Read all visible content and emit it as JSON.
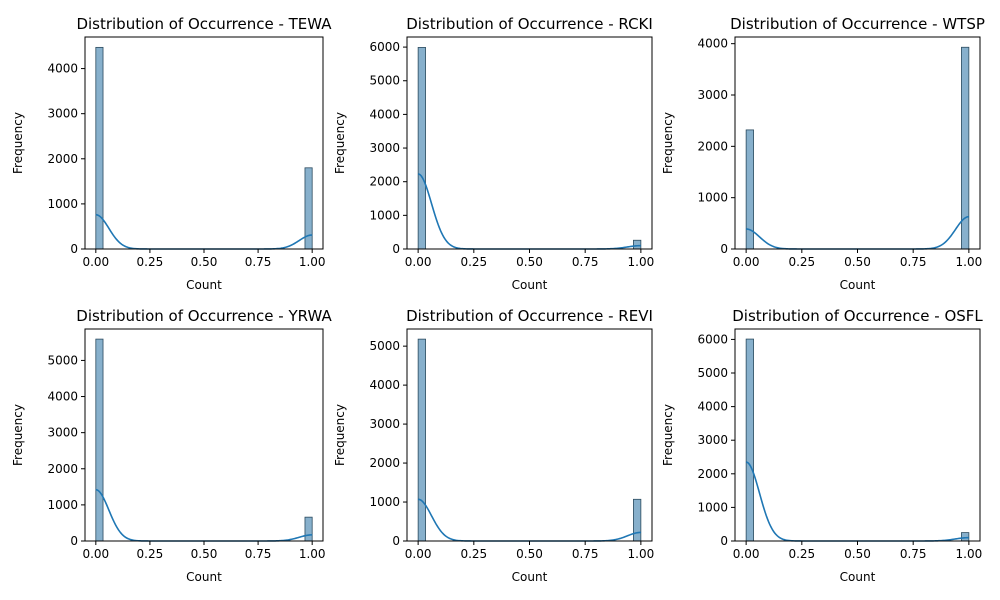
{
  "chart_data": [
    {
      "type": "bar",
      "title": "Distribution of Occurrence - TEWA",
      "xlabel": "Count",
      "ylabel": "Frequency",
      "categories": [
        0,
        1
      ],
      "values": [
        4470,
        1800
      ],
      "xlim": [
        -0.05,
        1.05
      ],
      "ylim": [
        0,
        4700
      ],
      "xticks": [
        "0.00",
        "0.25",
        "0.50",
        "0.75",
        "1.00"
      ],
      "yticks": [
        0,
        1000,
        2000,
        3000,
        4000
      ],
      "kde_peak_at_0": 760,
      "kde_peak_at_1": 310
    },
    {
      "type": "bar",
      "title": "Distribution of Occurrence - RCKI",
      "xlabel": "Count",
      "ylabel": "Frequency",
      "categories": [
        0,
        1
      ],
      "values": [
        5990,
        260
      ],
      "xlim": [
        -0.05,
        1.05
      ],
      "ylim": [
        0,
        6300
      ],
      "xticks": [
        "0.00",
        "0.25",
        "0.50",
        "0.75",
        "1.00"
      ],
      "yticks": [
        0,
        1000,
        2000,
        3000,
        4000,
        5000,
        6000
      ],
      "kde_peak_at_0": 2230,
      "kde_peak_at_1": 100
    },
    {
      "type": "bar",
      "title": "Distribution of Occurrence - WTSP",
      "xlabel": "Count",
      "ylabel": "Frequency",
      "categories": [
        0,
        1
      ],
      "values": [
        2320,
        3930
      ],
      "xlim": [
        -0.05,
        1.05
      ],
      "ylim": [
        0,
        4130
      ],
      "xticks": [
        "0.00",
        "0.25",
        "0.50",
        "0.75",
        "1.00"
      ],
      "yticks": [
        0,
        1000,
        2000,
        3000,
        4000
      ],
      "kde_peak_at_0": 390,
      "kde_peak_at_1": 630
    },
    {
      "type": "bar",
      "title": "Distribution of Occurrence - YRWA",
      "xlabel": "Count",
      "ylabel": "Frequency",
      "categories": [
        0,
        1
      ],
      "values": [
        5590,
        660
      ],
      "xlim": [
        -0.05,
        1.05
      ],
      "ylim": [
        0,
        5870
      ],
      "xticks": [
        "0.00",
        "0.25",
        "0.50",
        "0.75",
        "1.00"
      ],
      "yticks": [
        0,
        1000,
        2000,
        3000,
        4000,
        5000
      ],
      "kde_peak_at_0": 1420,
      "kde_peak_at_1": 170
    },
    {
      "type": "bar",
      "title": "Distribution of Occurrence - REVI",
      "xlabel": "Count",
      "ylabel": "Frequency",
      "categories": [
        0,
        1
      ],
      "values": [
        5180,
        1070
      ],
      "xlim": [
        -0.05,
        1.05
      ],
      "ylim": [
        0,
        5440
      ],
      "xticks": [
        "0.00",
        "0.25",
        "0.50",
        "0.75",
        "1.00"
      ],
      "yticks": [
        0,
        1000,
        2000,
        3000,
        4000,
        5000
      ],
      "kde_peak_at_0": 1070,
      "kde_peak_at_1": 220
    },
    {
      "type": "bar",
      "title": "Distribution of Occurrence - OSFL",
      "xlabel": "Count",
      "ylabel": "Frequency",
      "categories": [
        0,
        1
      ],
      "values": [
        6010,
        250
      ],
      "xlim": [
        -0.05,
        1.05
      ],
      "ylim": [
        0,
        6310
      ],
      "xticks": [
        "0.00",
        "0.25",
        "0.50",
        "0.75",
        "1.00"
      ],
      "yticks": [
        0,
        1000,
        2000,
        3000,
        4000,
        5000,
        6000
      ],
      "kde_peak_at_0": 2350,
      "kde_peak_at_1": 100
    }
  ],
  "colors": {
    "bar_fill": "#7aa7c7",
    "bar_edge": "#2b4a5e",
    "kde_line": "#1f77b4"
  }
}
